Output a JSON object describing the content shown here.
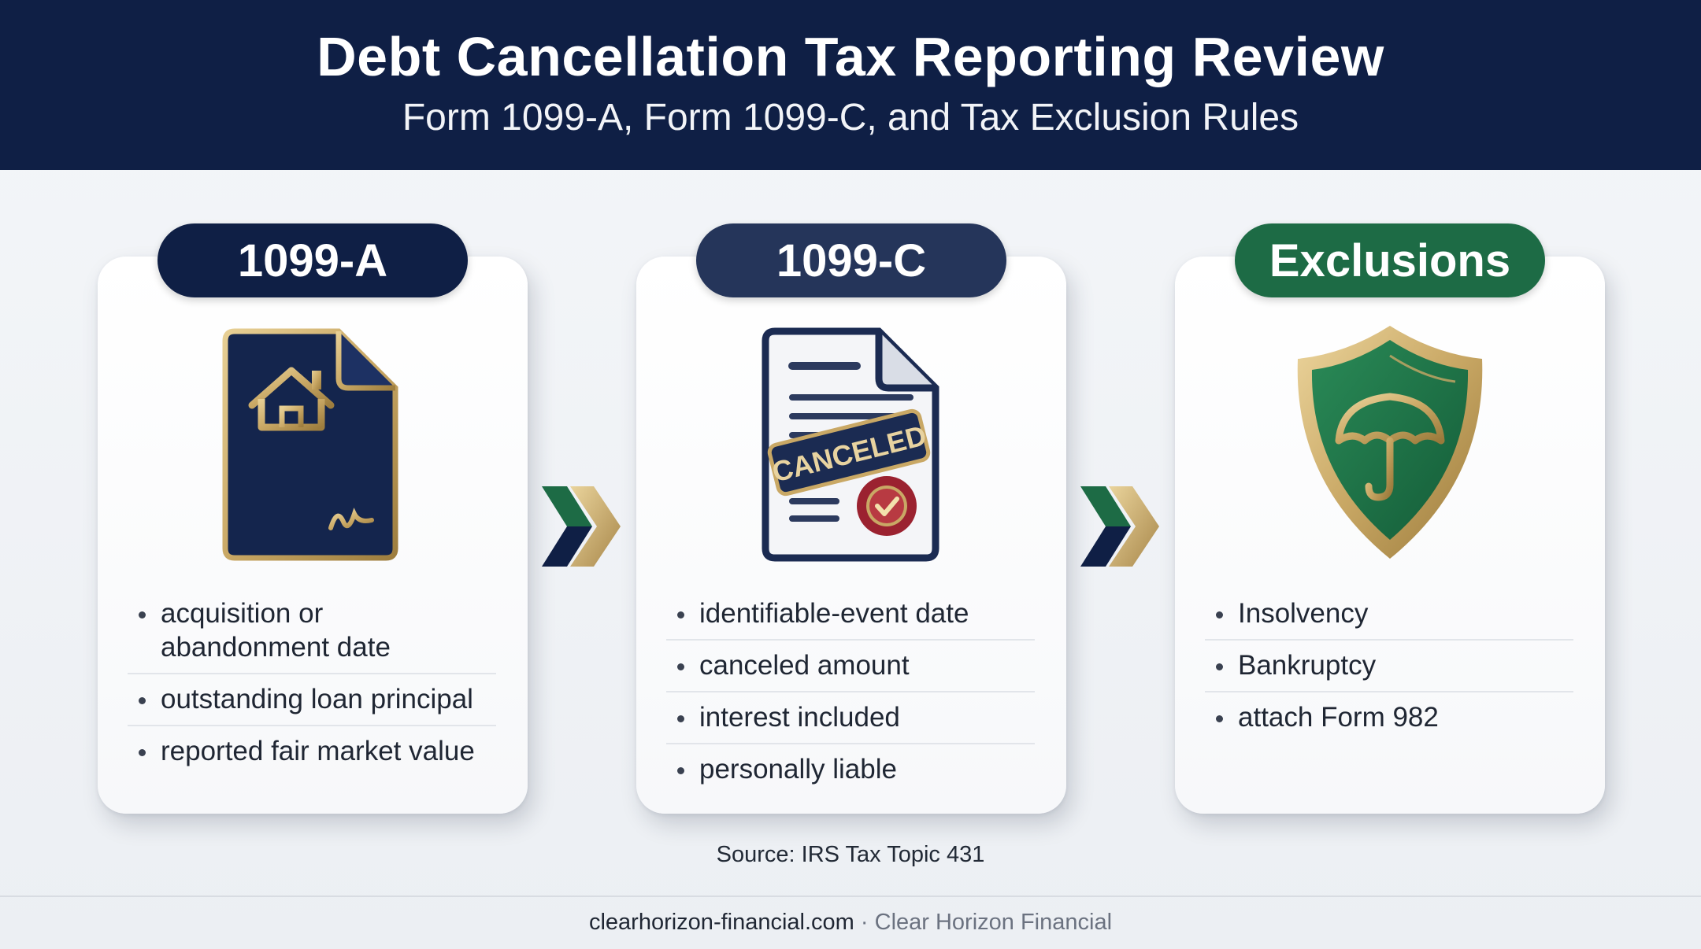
{
  "header": {
    "title": "Debt Cancellation Tax Reporting Review",
    "subtitle": "Form 1099-A, Form 1099-C, and Tax Exclusion Rules"
  },
  "cards": [
    {
      "label": "1099-A",
      "pill_color": "#0f1f45",
      "icon": "house-document-icon",
      "bullets": [
        "acquisition or abandonment date",
        "outstanding loan principal",
        "reported fair market value"
      ]
    },
    {
      "label": "1099-C",
      "pill_color": "#25355a",
      "icon": "canceled-document-icon",
      "stamp_text": "CANCELED",
      "bullets": [
        "identifiable-event date",
        "canceled amount",
        "interest included",
        "personally liable"
      ]
    },
    {
      "label": "Exclusions",
      "pill_color": "#1d6b45",
      "icon": "umbrella-shield-icon",
      "bullets": [
        "Insolvency",
        "Bankruptcy",
        "attach Form 982"
      ]
    }
  ],
  "source": "Source: IRS Tax Topic 431",
  "footer": {
    "domain": "clearhorizon-financial.com",
    "separator": " · ",
    "company": "Clear Horizon Financial"
  },
  "colors": {
    "navy": "#0f1f45",
    "gold": "#c9a865",
    "green": "#1d6b45",
    "stamp_red": "#9b2230"
  }
}
